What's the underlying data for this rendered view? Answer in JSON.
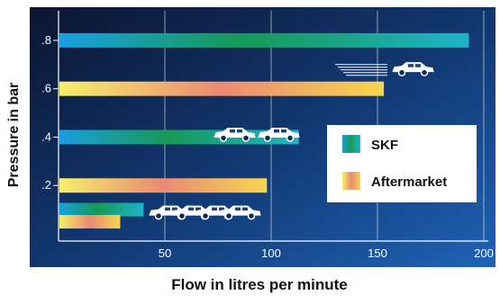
{
  "chart_data": {
    "type": "bar",
    "orientation": "horizontal",
    "xlabel": "Flow in litres per minute",
    "ylabel": "Pressure in bar",
    "xlim": [
      0,
      200
    ],
    "ylim": [
      0,
      0.9
    ],
    "x_ticks": [
      50,
      100,
      150,
      200
    ],
    "y_ticks": [
      {
        "value": 0.2,
        "label": ".2"
      },
      {
        "value": 0.4,
        "label": ".4"
      },
      {
        "value": 0.6,
        "label": ".6"
      },
      {
        "value": 0.8,
        "label": ".8"
      }
    ],
    "grid": "vertical",
    "legend": {
      "position": "right",
      "entries": [
        {
          "name": "SKF",
          "style": "blue-green gradient"
        },
        {
          "name": "Aftermarket",
          "style": "yellow-red gradient"
        }
      ]
    },
    "series": [
      {
        "name": "SKF",
        "points": [
          {
            "pressure": 0.8,
            "flow": 193
          },
          {
            "pressure": 0.4,
            "flow": 113
          },
          {
            "pressure": 0.1,
            "flow": 40
          }
        ]
      },
      {
        "name": "Aftermarket",
        "points": [
          {
            "pressure": 0.6,
            "flow": 153
          },
          {
            "pressure": 0.2,
            "flow": 98
          },
          {
            "pressure": 0.05,
            "flow": 29
          }
        ]
      }
    ],
    "annotations": [
      {
        "icon": "car-speed-icon",
        "count": 1,
        "near_pressure": 0.6
      },
      {
        "icon": "car-icon",
        "count": 2,
        "near_pressure": 0.4
      },
      {
        "icon": "car-icon",
        "count": 4,
        "near_pressure": 0.1
      }
    ]
  },
  "colors": {
    "background_dark": "#0e1a3a",
    "background_light": "#1f5fb0",
    "skf_gradient": [
      "#1b9fd8",
      "#18a05a",
      "#1bb0c4"
    ],
    "aftermarket_gradient": [
      "#f7e860",
      "#e98a70",
      "#f5d24a"
    ],
    "legend_box": "#ffffff",
    "axis": "#ffffff"
  }
}
